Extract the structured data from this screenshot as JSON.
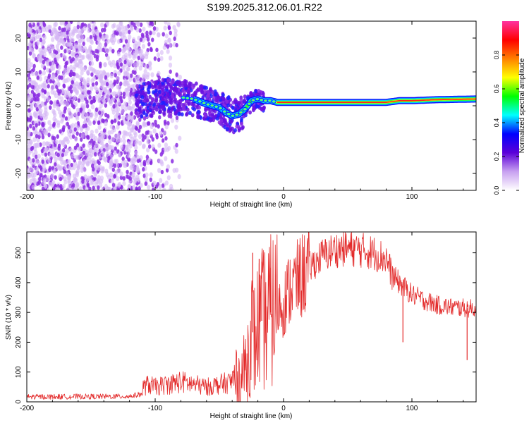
{
  "title": "S199.2025.312.06.01.R22",
  "colors": {
    "snr_line": "#e32b2b",
    "spectrum_dots": "#8a2be2",
    "spectrum_faint": "#d6b8f5",
    "frame": "#000000"
  },
  "chart_data": [
    {
      "type": "heatmap",
      "name": "spectrogram",
      "xlabel": "Height of straight line (km)",
      "ylabel": "Frequency (Hz)",
      "xlim": [
        -200,
        150
      ],
      "ylim": [
        -25,
        25
      ],
      "xticks": [
        -200,
        -100,
        0,
        100
      ],
      "xtick_labels": [
        "-200",
        "-100",
        "0",
        "100"
      ],
      "yticks": [
        -20,
        -10,
        0,
        10,
        20
      ],
      "ytick_labels": [
        "-20",
        "-10",
        "0",
        "10",
        "20"
      ],
      "ridge": {
        "description_free": true,
        "x": [
          -115,
          -100,
          -90,
          -80,
          -70,
          -60,
          -50,
          -45,
          -40,
          -35,
          -30,
          -25,
          -20,
          -15,
          -10,
          -5,
          0,
          10,
          20,
          40,
          60,
          80,
          90,
          100,
          120,
          150
        ],
        "y": [
          1.5,
          2.0,
          3.0,
          2.5,
          2.0,
          0.5,
          -0.5,
          -2.0,
          -3.0,
          -2.5,
          -1.0,
          1.5,
          2.0,
          1.5,
          1.5,
          1.0,
          1.0,
          1.0,
          1.0,
          1.0,
          1.0,
          1.0,
          1.5,
          1.5,
          1.8,
          2.0
        ]
      },
      "colorbar": {
        "label": "Normalized spectral amplitude",
        "range": [
          0,
          1
        ],
        "ticks": [
          0.0,
          0.2,
          0.4,
          0.6,
          0.8
        ],
        "tick_labels": [
          "0.0",
          "0.2",
          "0.4",
          "0.6",
          "0.8"
        ],
        "stops": [
          "#ffffff",
          "#c8a0f0",
          "#5b00d8",
          "#0000ff",
          "#00ffff",
          "#00ff00",
          "#ffff00",
          "#ff8000",
          "#ff0000",
          "#ff33a0"
        ]
      }
    },
    {
      "type": "line",
      "name": "snr",
      "xlabel": "Height of straight line (km)",
      "ylabel": "SNR (10 * v/v)",
      "xlim": [
        -200,
        150
      ],
      "ylim": [
        0,
        570
      ],
      "xticks": [
        -200,
        -100,
        0,
        100
      ],
      "xtick_labels": [
        "-200",
        "-100",
        "0",
        "100"
      ],
      "yticks": [
        0,
        100,
        200,
        300,
        400,
        500
      ],
      "ytick_labels": [
        "0",
        "100",
        "200",
        "300",
        "400",
        "500"
      ],
      "series": [
        {
          "name": "SNR",
          "x": [
            -200,
            -180,
            -160,
            -140,
            -120,
            -112,
            -105,
            -100,
            -90,
            -80,
            -70,
            -60,
            -50,
            -40,
            -32,
            -28,
            -25,
            -22,
            -20,
            -15,
            -10,
            -5,
            0,
            5,
            10,
            20,
            30,
            40,
            50,
            60,
            70,
            80,
            85,
            90,
            100,
            110,
            120,
            130,
            140,
            150
          ],
          "y": [
            20,
            20,
            22,
            22,
            24,
            40,
            60,
            50,
            60,
            70,
            60,
            50,
            60,
            70,
            90,
            150,
            250,
            200,
            260,
            280,
            300,
            320,
            330,
            380,
            400,
            450,
            490,
            510,
            515,
            510,
            500,
            480,
            420,
            400,
            360,
            340,
            325,
            318,
            315,
            312
          ]
        }
      ],
      "spikes": [
        {
          "x": -24,
          "y": 500
        },
        {
          "x": -19,
          "y": 480
        },
        {
          "x": -17,
          "y": 470
        },
        {
          "x": -10,
          "y": 450
        },
        {
          "x": 93,
          "y": 200
        },
        {
          "x": 143,
          "y": 140
        }
      ]
    }
  ]
}
